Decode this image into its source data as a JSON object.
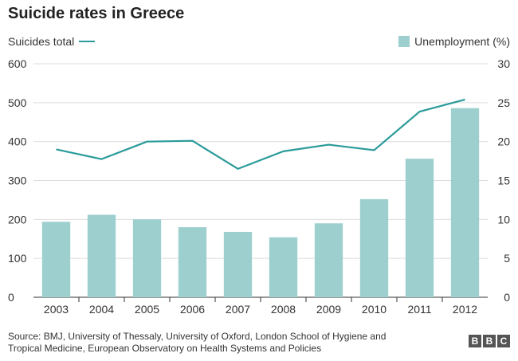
{
  "chart_data": {
    "type": "bar+line",
    "title": "Suicide rates in Greece",
    "categories": [
      "2003",
      "2004",
      "2005",
      "2006",
      "2007",
      "2008",
      "2009",
      "2010",
      "2011",
      "2012"
    ],
    "series": [
      {
        "name": "Suicides total",
        "type": "line",
        "axis": "left",
        "values": [
          380,
          355,
          400,
          402,
          330,
          375,
          392,
          378,
          477,
          508
        ],
        "color": "#2a9a9a"
      },
      {
        "name": "Unemployment (%)",
        "type": "bar",
        "axis": "right",
        "values": [
          9.7,
          10.6,
          10.0,
          9.0,
          8.4,
          7.7,
          9.5,
          12.6,
          17.8,
          24.3
        ],
        "color": "#9ecfcf"
      }
    ],
    "yleft": {
      "min": 0,
      "max": 600,
      "ticks": [
        0,
        100,
        200,
        300,
        400,
        500,
        600
      ]
    },
    "yright": {
      "min": 0,
      "max": 30,
      "ticks": [
        0,
        5,
        10,
        15,
        20,
        25,
        30
      ]
    },
    "grid": true
  },
  "legend": {
    "left_label": "Suicides total",
    "right_label": "Unemployment (%)"
  },
  "footer": {
    "source": "Source: BMJ, University of Thessaly, University of Oxford, London School of Hygiene and Tropical Medicine, European Observatory on Health Systems and Policies",
    "logo": [
      "B",
      "B",
      "C"
    ]
  }
}
